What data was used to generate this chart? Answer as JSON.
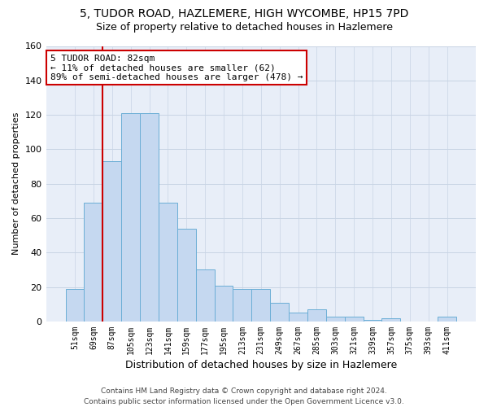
{
  "title1": "5, TUDOR ROAD, HAZLEMERE, HIGH WYCOMBE, HP15 7PD",
  "title2": "Size of property relative to detached houses in Hazlemere",
  "xlabel": "Distribution of detached houses by size in Hazlemere",
  "ylabel": "Number of detached properties",
  "footer1": "Contains HM Land Registry data © Crown copyright and database right 2024.",
  "footer2": "Contains public sector information licensed under the Open Government Licence v3.0.",
  "bar_labels": [
    "51sqm",
    "69sqm",
    "87sqm",
    "105sqm",
    "123sqm",
    "141sqm",
    "159sqm",
    "177sqm",
    "195sqm",
    "213sqm",
    "231sqm",
    "249sqm",
    "267sqm",
    "285sqm",
    "303sqm",
    "321sqm",
    "339sqm",
    "357sqm",
    "375sqm",
    "393sqm",
    "411sqm"
  ],
  "bar_values": [
    19,
    69,
    93,
    121,
    121,
    69,
    54,
    30,
    21,
    19,
    19,
    11,
    5,
    7,
    3,
    3,
    1,
    2,
    0,
    0,
    3
  ],
  "bar_color": "#c5d8f0",
  "bar_edge_color": "#6baed6",
  "vline_x": 1.5,
  "vline_color": "#cc0000",
  "box_edge_color": "#cc0000",
  "annotation_line1": "5 TUDOR ROAD: 82sqm",
  "annotation_line2": "← 11% of detached houses are smaller (62)",
  "annotation_line3": "89% of semi-detached houses are larger (478) →",
  "ylim_max": 160,
  "yticks": [
    0,
    20,
    40,
    60,
    80,
    100,
    120,
    140,
    160
  ],
  "grid_color": "#c8d4e4",
  "background_color": "#e8eef8",
  "title1_fontsize": 10,
  "title2_fontsize": 9,
  "xlabel_fontsize": 9,
  "ylabel_fontsize": 8,
  "tick_fontsize": 7,
  "annotation_fontsize": 8,
  "footer_fontsize": 6.5
}
